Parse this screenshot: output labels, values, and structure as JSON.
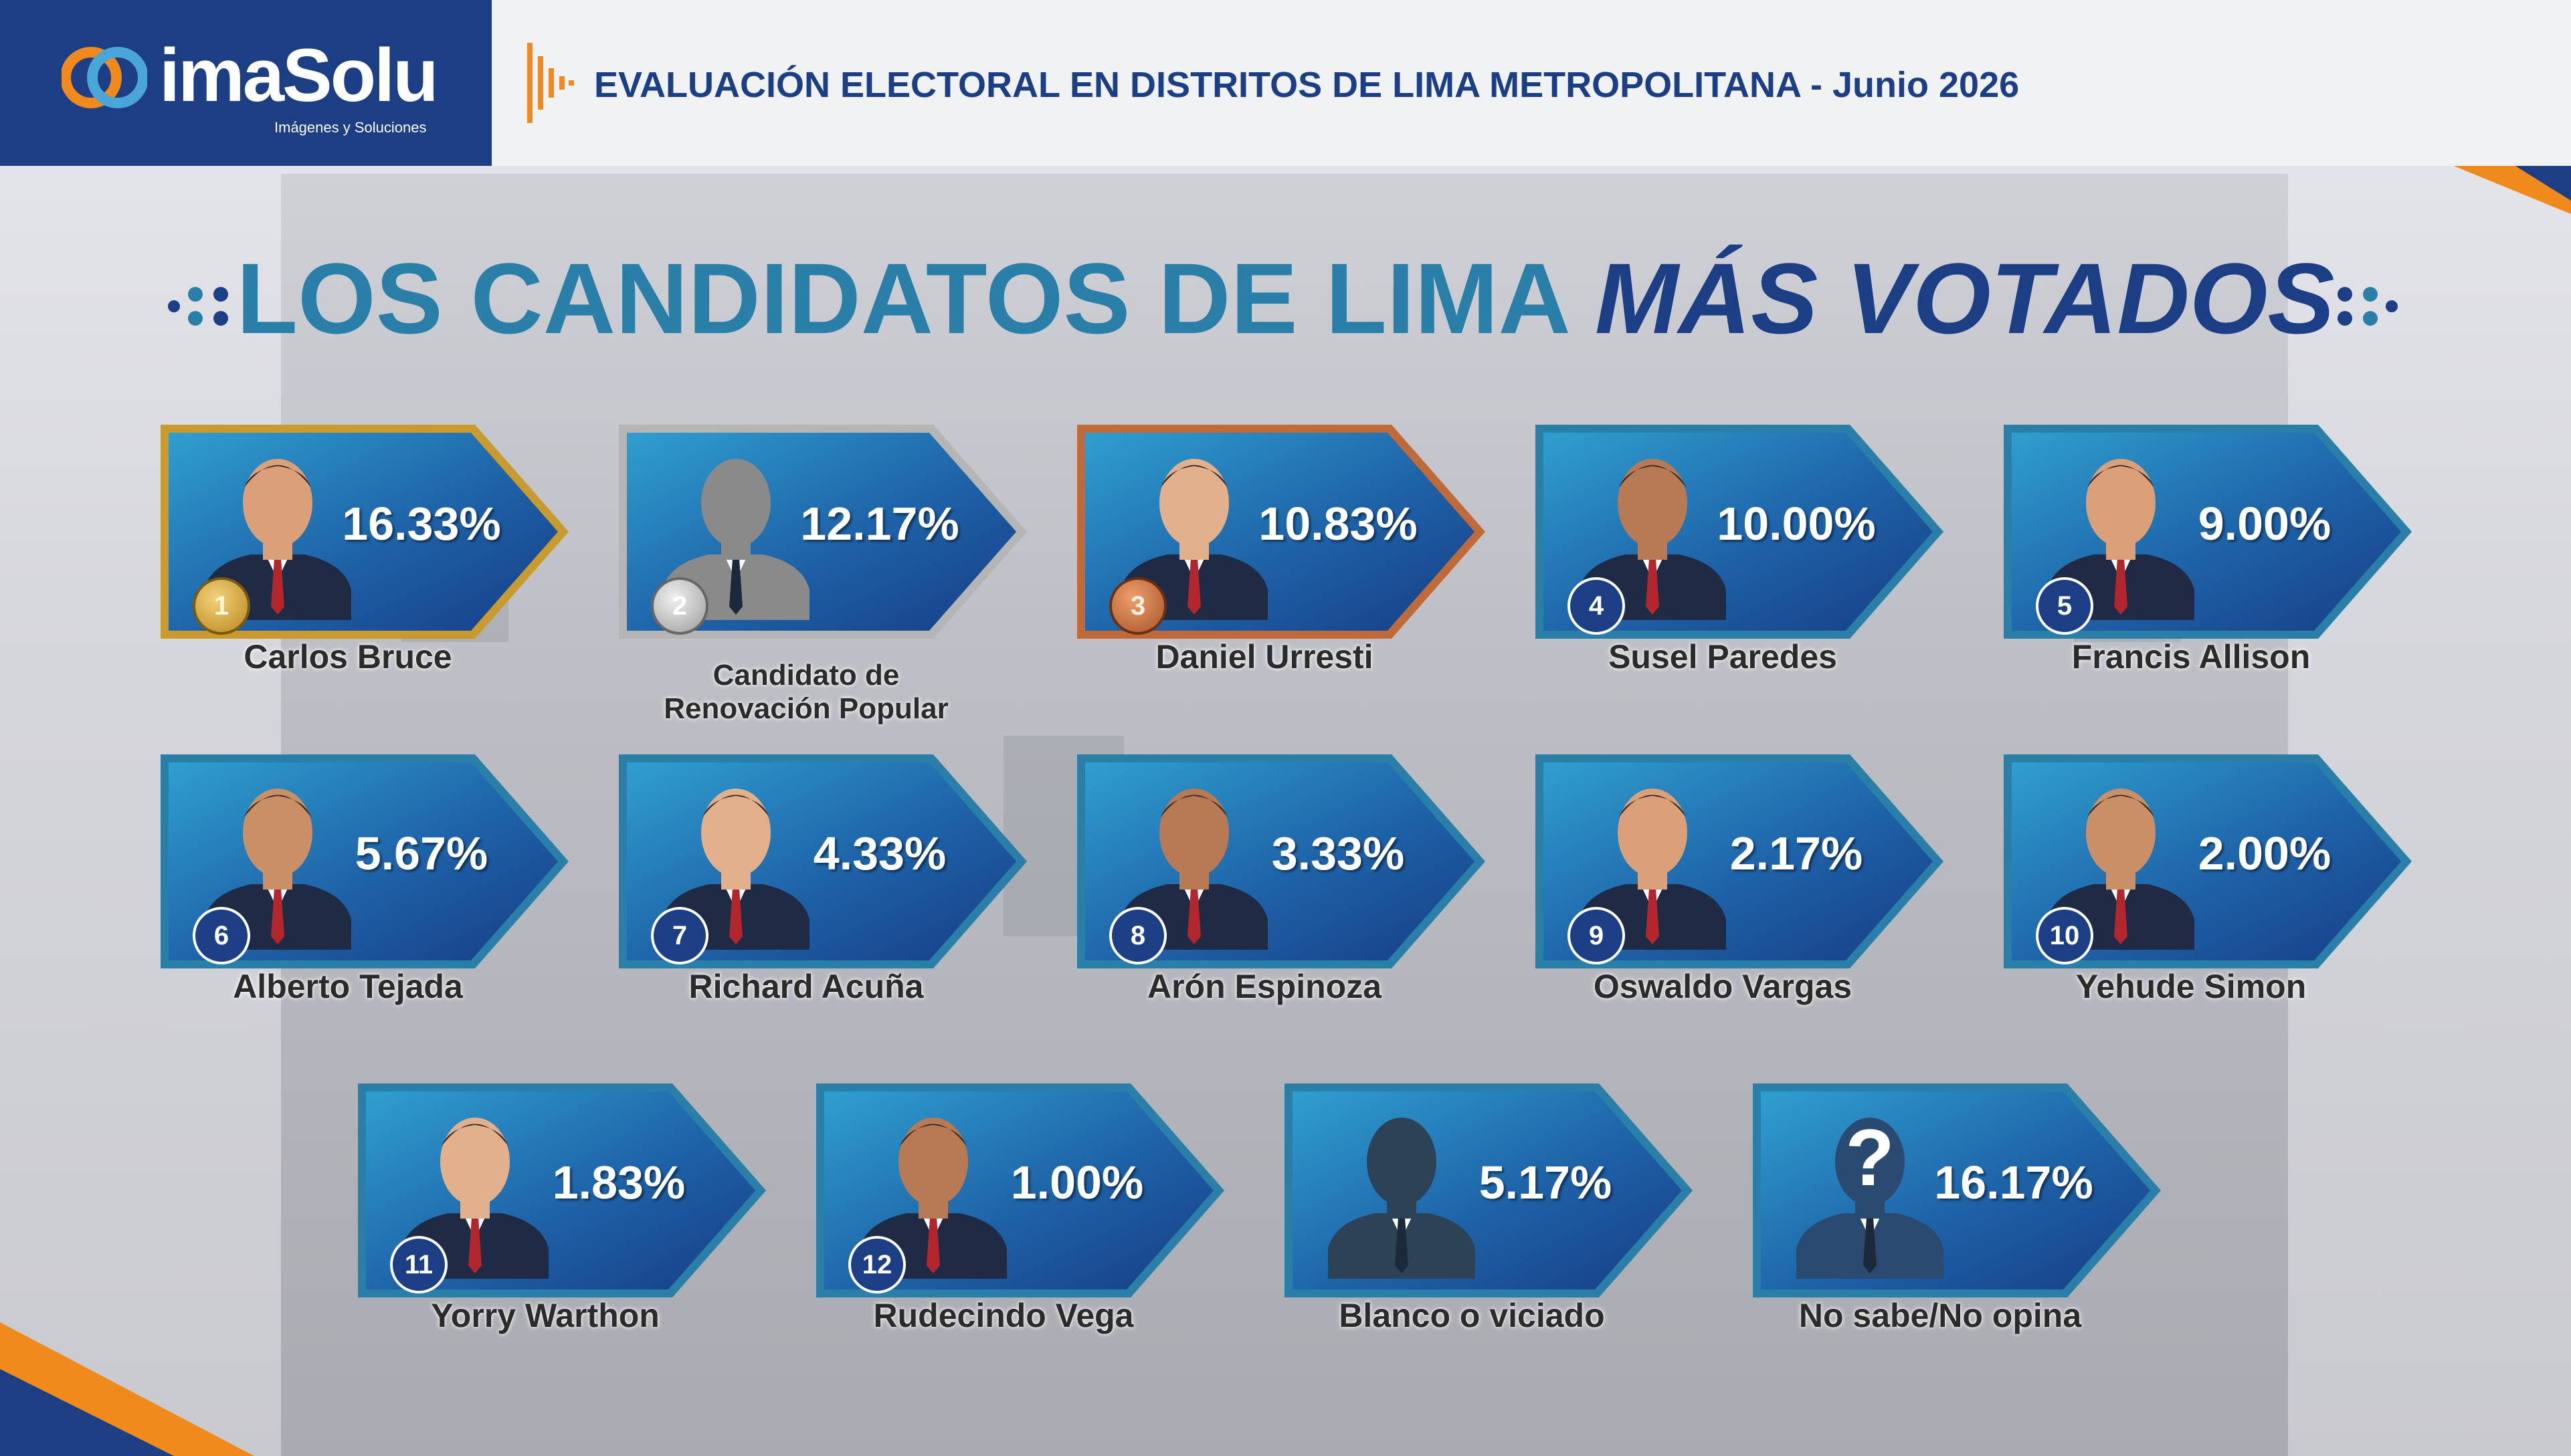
{
  "header": {
    "brand": "imaSolu",
    "brand_tagline": "Imágenes y Soluciones",
    "title": "EVALUACIÓN ELECTORAL EN DISTRITOS DE LIMA METROPOLITANA - Junio 2026"
  },
  "main_title": {
    "part_a": "LOS CANDIDATOS DE LIMA ",
    "part_b": "MÁS VOTADOS"
  },
  "colors": {
    "navy": "#1b3e85",
    "teal": "#2a7fa8",
    "orange": "#f08a1c",
    "gold": "#c99a2e",
    "silver": "#b0b0b0",
    "bronze": "#c06a3a"
  },
  "chart_data": {
    "type": "table",
    "title": "LOS CANDIDATOS DE LIMA MÁS VOTADOS",
    "unit": "%",
    "rows": [
      {
        "rank": "1",
        "name": "Carlos Bruce",
        "value": 16.33,
        "label": "16.33%",
        "frame": "gold"
      },
      {
        "rank": "2",
        "name": "Candidato de Renovación Popular",
        "value": 12.17,
        "label": "12.17%",
        "frame": "silver"
      },
      {
        "rank": "3",
        "name": "Daniel Urresti",
        "value": 10.83,
        "label": "10.83%",
        "frame": "bronze"
      },
      {
        "rank": "4",
        "name": "Susel Paredes",
        "value": 10.0,
        "label": "10.00%",
        "frame": "blue"
      },
      {
        "rank": "5",
        "name": "Francis Allison",
        "value": 9.0,
        "label": "9.00%",
        "frame": "blue"
      },
      {
        "rank": "6",
        "name": "Alberto Tejada",
        "value": 5.67,
        "label": "5.67%",
        "frame": "blue"
      },
      {
        "rank": "7",
        "name": "Richard Acuña",
        "value": 4.33,
        "label": "4.33%",
        "frame": "blue"
      },
      {
        "rank": "8",
        "name": "Arón Espinoza",
        "value": 3.33,
        "label": "3.33%",
        "frame": "blue"
      },
      {
        "rank": "9",
        "name": "Oswaldo Vargas",
        "value": 2.17,
        "label": "2.17%",
        "frame": "blue"
      },
      {
        "rank": "10",
        "name": "Yehude Simon",
        "value": 2.0,
        "label": "2.00%",
        "frame": "blue"
      },
      {
        "rank": "11",
        "name": "Yorry Warthon",
        "value": 1.83,
        "label": "1.83%",
        "frame": "blue"
      },
      {
        "rank": "12",
        "name": "Rudecindo Vega",
        "value": 1.0,
        "label": "1.00%",
        "frame": "blue"
      },
      {
        "rank": "",
        "name": "Blanco o viciado",
        "value": 5.17,
        "label": "5.17%",
        "frame": "blue"
      },
      {
        "rank": "",
        "name": "No sabe/No opina",
        "value": 16.17,
        "label": "16.17%",
        "frame": "blue"
      }
    ]
  }
}
